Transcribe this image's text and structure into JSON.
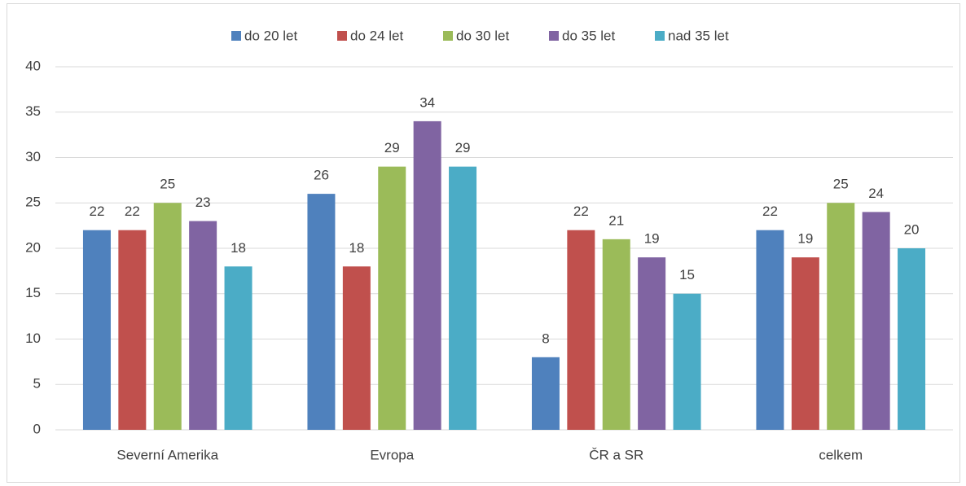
{
  "chart_data": {
    "type": "bar",
    "categories": [
      "Severní Amerika",
      "Evropa",
      "ČR a SR",
      "celkem"
    ],
    "series": [
      {
        "name": "do 20 let",
        "color": "#4f81bd",
        "values": [
          22,
          26,
          8,
          22
        ]
      },
      {
        "name": "do 24 let",
        "color": "#c0504d",
        "values": [
          22,
          18,
          22,
          19
        ]
      },
      {
        "name": "do 30 let",
        "color": "#9bbb59",
        "values": [
          25,
          29,
          21,
          25
        ]
      },
      {
        "name": "do 35 let",
        "color": "#8064a2",
        "values": [
          23,
          34,
          19,
          24
        ]
      },
      {
        "name": "nad 35 let",
        "color": "#4bacc6",
        "values": [
          18,
          29,
          15,
          20
        ]
      }
    ],
    "ylim": [
      0,
      40
    ],
    "yticks": [
      0,
      5,
      10,
      15,
      20,
      25,
      30,
      35,
      40
    ],
    "grid": true,
    "legend": "top"
  }
}
